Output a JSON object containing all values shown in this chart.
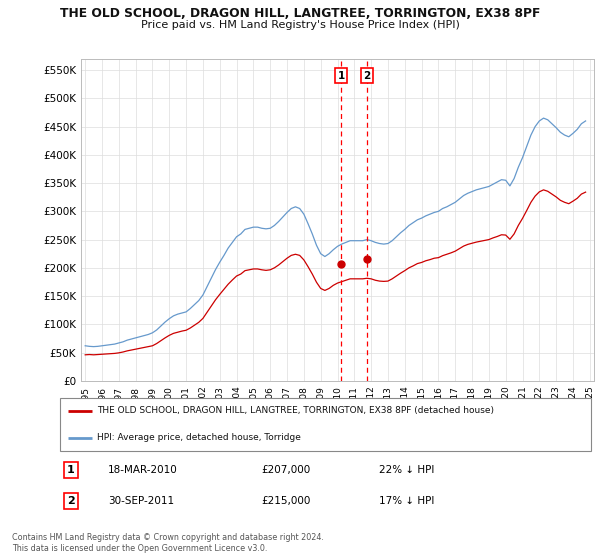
{
  "title": "THE OLD SCHOOL, DRAGON HILL, LANGTREE, TORRINGTON, EX38 8PF",
  "subtitle": "Price paid vs. HM Land Registry's House Price Index (HPI)",
  "legend_red": "THE OLD SCHOOL, DRAGON HILL, LANGTREE, TORRINGTON, EX38 8PF (detached house)",
  "legend_blue": "HPI: Average price, detached house, Torridge",
  "footnote": "Contains HM Land Registry data © Crown copyright and database right 2024.\nThis data is licensed under the Open Government Licence v3.0.",
  "sale1_label": "1",
  "sale1_date": "18-MAR-2010",
  "sale1_price": 207000,
  "sale1_price_str": "£207,000",
  "sale1_pct": "22% ↓ HPI",
  "sale2_label": "2",
  "sale2_date": "30-SEP-2011",
  "sale2_price": 215000,
  "sale2_price_str": "£215,000",
  "sale2_pct": "17% ↓ HPI",
  "sale1_x": 2010.21,
  "sale2_x": 2011.75,
  "ylim_max": 570000,
  "ytick_vals": [
    0,
    50000,
    100000,
    150000,
    200000,
    250000,
    300000,
    350000,
    400000,
    450000,
    500000,
    550000
  ],
  "ytick_labels": [
    "£0",
    "£50K",
    "£100K",
    "£150K",
    "£200K",
    "£250K",
    "£300K",
    "£350K",
    "£400K",
    "£450K",
    "£500K",
    "£550K"
  ],
  "xmin": 1994.75,
  "xmax": 2025.25,
  "bg_color": "#ffffff",
  "grid_color": "#dddddd",
  "red_color": "#cc0000",
  "blue_color": "#6699cc",
  "hpi_years": [
    1995.0,
    1995.25,
    1995.5,
    1995.75,
    1996.0,
    1996.25,
    1996.5,
    1996.75,
    1997.0,
    1997.25,
    1997.5,
    1997.75,
    1998.0,
    1998.25,
    1998.5,
    1998.75,
    1999.0,
    1999.25,
    1999.5,
    1999.75,
    2000.0,
    2000.25,
    2000.5,
    2000.75,
    2001.0,
    2001.25,
    2001.5,
    2001.75,
    2002.0,
    2002.25,
    2002.5,
    2002.75,
    2003.0,
    2003.25,
    2003.5,
    2003.75,
    2004.0,
    2004.25,
    2004.5,
    2004.75,
    2005.0,
    2005.25,
    2005.5,
    2005.75,
    2006.0,
    2006.25,
    2006.5,
    2006.75,
    2007.0,
    2007.25,
    2007.5,
    2007.75,
    2008.0,
    2008.25,
    2008.5,
    2008.75,
    2009.0,
    2009.25,
    2009.5,
    2009.75,
    2010.0,
    2010.25,
    2010.5,
    2010.75,
    2011.0,
    2011.25,
    2011.5,
    2011.75,
    2012.0,
    2012.25,
    2012.5,
    2012.75,
    2013.0,
    2013.25,
    2013.5,
    2013.75,
    2014.0,
    2014.25,
    2014.5,
    2014.75,
    2015.0,
    2015.25,
    2015.5,
    2015.75,
    2016.0,
    2016.25,
    2016.5,
    2016.75,
    2017.0,
    2017.25,
    2017.5,
    2017.75,
    2018.0,
    2018.25,
    2018.5,
    2018.75,
    2019.0,
    2019.25,
    2019.5,
    2019.75,
    2020.0,
    2020.25,
    2020.5,
    2020.75,
    2021.0,
    2021.25,
    2021.5,
    2021.75,
    2022.0,
    2022.25,
    2022.5,
    2022.75,
    2023.0,
    2023.25,
    2023.5,
    2023.75,
    2024.0,
    2024.25,
    2024.5,
    2024.75
  ],
  "hpi_values": [
    62000,
    61000,
    60500,
    61000,
    62000,
    63000,
    64000,
    65000,
    67000,
    69000,
    72000,
    74000,
    76000,
    78000,
    80000,
    82000,
    85000,
    90000,
    97000,
    104000,
    110000,
    115000,
    118000,
    120000,
    122000,
    128000,
    135000,
    142000,
    152000,
    167000,
    182000,
    197000,
    210000,
    222000,
    235000,
    245000,
    255000,
    260000,
    268000,
    270000,
    272000,
    272000,
    270000,
    269000,
    270000,
    275000,
    282000,
    290000,
    298000,
    305000,
    308000,
    305000,
    295000,
    278000,
    260000,
    240000,
    225000,
    220000,
    225000,
    232000,
    238000,
    242000,
    245000,
    248000,
    248000,
    248000,
    248000,
    250000,
    248000,
    245000,
    243000,
    242000,
    243000,
    248000,
    255000,
    262000,
    268000,
    275000,
    280000,
    285000,
    288000,
    292000,
    295000,
    298000,
    300000,
    305000,
    308000,
    312000,
    316000,
    322000,
    328000,
    332000,
    335000,
    338000,
    340000,
    342000,
    344000,
    348000,
    352000,
    356000,
    355000,
    345000,
    358000,
    378000,
    395000,
    415000,
    435000,
    450000,
    460000,
    465000,
    462000,
    455000,
    448000,
    440000,
    435000,
    432000,
    438000,
    445000,
    455000,
    460000
  ],
  "prop_years": [
    1995.0,
    1995.25,
    1995.5,
    1995.75,
    1996.0,
    1996.25,
    1996.5,
    1996.75,
    1997.0,
    1997.25,
    1997.5,
    1997.75,
    1998.0,
    1998.25,
    1998.5,
    1998.75,
    1999.0,
    1999.25,
    1999.5,
    1999.75,
    2000.0,
    2000.25,
    2000.5,
    2000.75,
    2001.0,
    2001.25,
    2001.5,
    2001.75,
    2002.0,
    2002.25,
    2002.5,
    2002.75,
    2003.0,
    2003.25,
    2003.5,
    2003.75,
    2004.0,
    2004.25,
    2004.5,
    2004.75,
    2005.0,
    2005.25,
    2005.5,
    2005.75,
    2006.0,
    2006.25,
    2006.5,
    2006.75,
    2007.0,
    2007.25,
    2007.5,
    2007.75,
    2008.0,
    2008.25,
    2008.5,
    2008.75,
    2009.0,
    2009.25,
    2009.5,
    2009.75,
    2010.0,
    2010.25,
    2010.5,
    2010.75,
    2011.0,
    2011.25,
    2011.5,
    2011.75,
    2012.0,
    2012.25,
    2012.5,
    2012.75,
    2013.0,
    2013.25,
    2013.5,
    2013.75,
    2014.0,
    2014.25,
    2014.5,
    2014.75,
    2015.0,
    2015.25,
    2015.5,
    2015.75,
    2016.0,
    2016.25,
    2016.5,
    2016.75,
    2017.0,
    2017.25,
    2017.5,
    2017.75,
    2018.0,
    2018.25,
    2018.5,
    2018.75,
    2019.0,
    2019.25,
    2019.5,
    2019.75,
    2020.0,
    2020.25,
    2020.5,
    2020.75,
    2021.0,
    2021.25,
    2021.5,
    2021.75,
    2022.0,
    2022.25,
    2022.5,
    2022.75,
    2023.0,
    2023.25,
    2023.5,
    2023.75,
    2024.0,
    2024.25,
    2024.5,
    2024.75
  ],
  "prop_values": [
    46000,
    46500,
    46000,
    46500,
    47000,
    47500,
    48000,
    48500,
    49500,
    51000,
    53000,
    54500,
    56000,
    57500,
    59000,
    60500,
    62000,
    66000,
    71000,
    76000,
    80500,
    84000,
    86000,
    88000,
    89500,
    93500,
    98500,
    103500,
    110500,
    121500,
    132500,
    143500,
    153000,
    162000,
    171000,
    178500,
    185500,
    189000,
    195000,
    196500,
    198000,
    198000,
    196500,
    195500,
    196500,
    200000,
    205000,
    211000,
    217000,
    222000,
    224000,
    222000,
    214000,
    202000,
    189000,
    174500,
    163500,
    160000,
    163500,
    169000,
    173000,
    175500,
    178000,
    180500,
    180500,
    180500,
    180500,
    181500,
    180500,
    178000,
    176500,
    176000,
    176500,
    180500,
    185500,
    190500,
    195000,
    200000,
    203500,
    207500,
    209500,
    212500,
    214500,
    217000,
    218000,
    221500,
    224000,
    226500,
    229500,
    234000,
    238500,
    241500,
    243500,
    245500,
    247000,
    248500,
    250000,
    253000,
    255500,
    258500,
    258000,
    250500,
    260000,
    275000,
    287500,
    301500,
    316000,
    327000,
    334500,
    338000,
    335500,
    330500,
    325500,
    319500,
    316000,
    313500,
    318000,
    323000,
    330500,
    334000
  ]
}
